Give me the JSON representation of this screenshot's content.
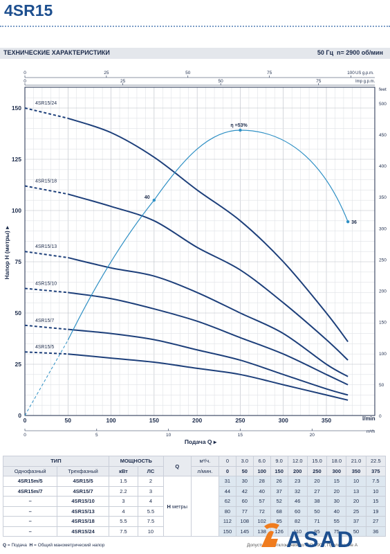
{
  "header": {
    "model": "4SR15",
    "section_title": "ТЕХНИЧЕСКИЕ ХАРАКТЕРИСТИКИ",
    "frequency": "50 Гц",
    "speed": "n= 2900 об/мин"
  },
  "chart_data": {
    "type": "line",
    "x_unit_bottom": "l/min",
    "x_label": "Подача Q",
    "y_label": "Напор H (метры)",
    "y_right_unit": "feet",
    "top_axis_1_unit": "US g.p.m.",
    "top_axis_2_unit": "Imp g.p.m.",
    "bottom_axis_2_unit": "m³/h",
    "xlim": [
      0,
      390
    ],
    "ylim": [
      0,
      155
    ],
    "x_ticks": [
      "0",
      "50",
      "100",
      "150",
      "200",
      "250",
      "300",
      "350"
    ],
    "y_ticks": [
      "0",
      "25",
      "50",
      "75",
      "100",
      "125",
      "150"
    ],
    "feet_ticks": [
      "0",
      "50",
      "100",
      "150",
      "200",
      "250",
      "300",
      "350",
      "400",
      "450",
      "500"
    ],
    "usgpm_ticks": [
      "0",
      "25",
      "50",
      "75",
      "100"
    ],
    "impgpm_ticks": [
      "0",
      "25",
      "50",
      "75",
      "100"
    ],
    "m3h_ticks": [
      "0",
      "5",
      "10",
      "15",
      "20"
    ],
    "x": [
      0,
      50,
      100,
      150,
      200,
      250,
      300,
      350,
      375
    ],
    "series": [
      {
        "name": "4SR15/5",
        "values": [
          31,
          30,
          28,
          26,
          23,
          20,
          15,
          10,
          7.5
        ]
      },
      {
        "name": "4SR15/7",
        "values": [
          44,
          42,
          40,
          37,
          32,
          27,
          20,
          13,
          10
        ]
      },
      {
        "name": "4SR15/10",
        "values": [
          62,
          60,
          57,
          52,
          46,
          38,
          30,
          20,
          15
        ]
      },
      {
        "name": "4SR15/13",
        "values": [
          80,
          77,
          72,
          68,
          60,
          50,
          40,
          25,
          19
        ]
      },
      {
        "name": "4SR15/18",
        "values": [
          112,
          108,
          102,
          95,
          82,
          71,
          55,
          37,
          27
        ]
      },
      {
        "name": "4SR15/24",
        "values": [
          150,
          145,
          138,
          126,
          110,
          95,
          75,
          50,
          36
        ]
      }
    ],
    "efficiency": {
      "x": [
        0,
        150,
        250,
        375
      ],
      "values": [
        0,
        40,
        53,
        36
      ],
      "labels": [
        "40",
        "η =53%",
        "36"
      ],
      "ylim": [
        0,
        60
      ]
    }
  },
  "table": {
    "type_header": "ТИП",
    "single_phase": "Однофазный",
    "three_phase": "Трехфазный",
    "power_header": "МОЩНОСТЬ",
    "kw": "кВт",
    "hp": "ЛС",
    "q_label": "Q",
    "m3h_unit": "м³/ч.",
    "lmin_unit": "л/мин.",
    "h_label": "Н",
    "h_unit": "метры",
    "m3h_values": [
      "0",
      "3.0",
      "6.0",
      "9.0",
      "12.0",
      "15.0",
      "18.0",
      "21.0",
      "22.5"
    ],
    "lmin_values": [
      "0",
      "50",
      "100",
      "150",
      "200",
      "250",
      "300",
      "350",
      "375"
    ],
    "rows": [
      {
        "single": "4SR15m/5",
        "three": "4SR15/5",
        "kw": "1.5",
        "hp": "2",
        "h": [
          "31",
          "30",
          "28",
          "26",
          "23",
          "20",
          "15",
          "10",
          "7.5"
        ]
      },
      {
        "single": "4SR15m/7",
        "three": "4SR15/7",
        "kw": "2.2",
        "hp": "3",
        "h": [
          "44",
          "42",
          "40",
          "37",
          "32",
          "27",
          "20",
          "13",
          "10"
        ]
      },
      {
        "single": "–",
        "three": "4SR15/10",
        "kw": "3",
        "hp": "4",
        "h": [
          "62",
          "60",
          "57",
          "52",
          "46",
          "38",
          "30",
          "20",
          "15"
        ]
      },
      {
        "single": "–",
        "three": "4SR15/13",
        "kw": "4",
        "hp": "5.5",
        "h": [
          "80",
          "77",
          "72",
          "68",
          "60",
          "50",
          "40",
          "25",
          "19"
        ]
      },
      {
        "single": "–",
        "three": "4SR15/18",
        "kw": "5.5",
        "hp": "7.5",
        "h": [
          "112",
          "108",
          "102",
          "95",
          "82",
          "71",
          "55",
          "37",
          "27"
        ]
      },
      {
        "single": "–",
        "three": "4SR15/24",
        "kw": "7.5",
        "hp": "10",
        "h": [
          "150",
          "145",
          "138",
          "126",
          "110",
          "95",
          "75",
          "50",
          "36"
        ]
      }
    ]
  },
  "footnote": {
    "q_key": "Q",
    "q_text": "= Подача",
    "h_key": "H",
    "h_text": "= Общий манометрический напор",
    "right_text": "Допустимые отклонения по ISO 9906, Приложение А"
  },
  "logo": {
    "text": "ASAD",
    "accent_color": "#f07c1e",
    "brand_color": "#1d4f8f"
  }
}
